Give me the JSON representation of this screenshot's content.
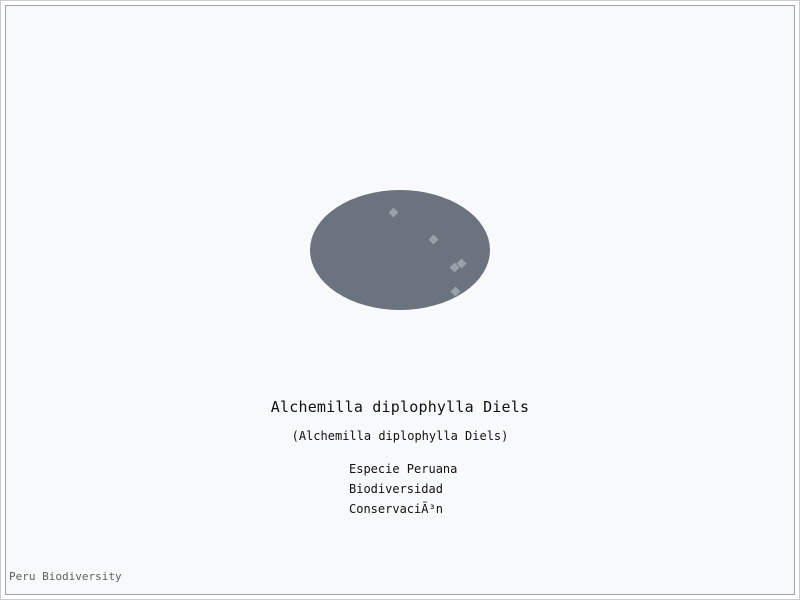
{
  "species": {
    "title": "Alchemilla diplophylla Diels",
    "subtitle": "(Alchemilla diplophylla Diels)"
  },
  "tags": [
    "Especie Peruana",
    "Biodiversidad",
    "ConservaciÃ³n"
  ],
  "footer": {
    "credit": "Peru Biodiversity"
  },
  "colors": {
    "ellipse_fill": "#6b737e",
    "marker_fill": "#9aa0a8",
    "background": "#f8f9fb",
    "border": "#a0a4aa"
  }
}
